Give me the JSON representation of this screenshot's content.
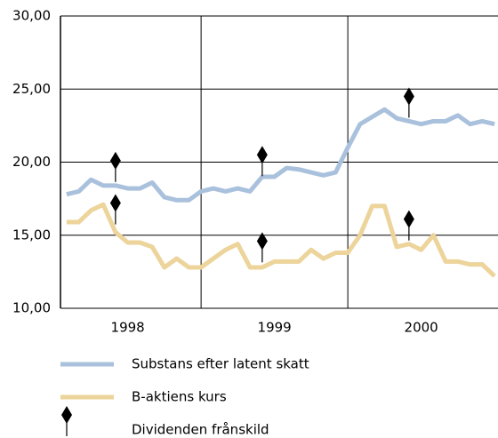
{
  "chart_data": {
    "type": "line",
    "categories": [
      null,
      null,
      null,
      null,
      null,
      "1998",
      null,
      null,
      null,
      null,
      null,
      null,
      null,
      null,
      null,
      null,
      null,
      "1999",
      null,
      null,
      null,
      null,
      null,
      null,
      null,
      null,
      null,
      null,
      null,
      "2000",
      null,
      null,
      null,
      null,
      null,
      null
    ],
    "series": [
      {
        "name": "Substans efter latent skatt",
        "color": "#a9c1dc",
        "values": [
          17.8,
          18.0,
          18.8,
          18.4,
          18.4,
          18.2,
          18.2,
          18.6,
          17.6,
          17.4,
          17.4,
          18.0,
          18.2,
          18.0,
          18.2,
          18.0,
          19.0,
          19.0,
          19.6,
          19.5,
          19.3,
          19.1,
          19.3,
          21.0,
          22.6,
          23.1,
          23.6,
          23.0,
          22.8,
          22.6,
          22.8,
          22.8,
          23.2,
          22.6,
          22.8,
          22.6
        ]
      },
      {
        "name": "B-aktiens kurs",
        "color": "#ecd49a",
        "values": [
          15.9,
          15.9,
          16.7,
          17.1,
          15.2,
          14.5,
          14.5,
          14.2,
          12.8,
          13.4,
          12.8,
          12.8,
          13.4,
          14.0,
          14.4,
          12.8,
          12.8,
          13.2,
          13.2,
          13.2,
          14.0,
          13.4,
          13.8,
          13.8,
          15.0,
          17.0,
          17.0,
          14.2,
          14.4,
          14.0,
          15.0,
          13.2,
          13.2,
          13.0,
          13.0,
          12.2
        ]
      }
    ],
    "markers": {
      "name": "Dividenden frånskild",
      "color": "#000000",
      "points": [
        {
          "x": 4,
          "y": 20.1
        },
        {
          "x": 4,
          "y": 17.2
        },
        {
          "x": 16,
          "y": 20.5
        },
        {
          "x": 16,
          "y": 14.6
        },
        {
          "x": 28,
          "y": 24.5
        },
        {
          "x": 28,
          "y": 16.1
        }
      ]
    },
    "ylim": [
      10,
      30
    ],
    "yticks": [
      {
        "value": 10,
        "label": "10,00"
      },
      {
        "value": 15,
        "label": "15,00"
      },
      {
        "value": 20,
        "label": "20,00"
      },
      {
        "value": 25,
        "label": "25,00"
      },
      {
        "value": 30,
        "label": "30,00"
      }
    ],
    "grid": true
  }
}
